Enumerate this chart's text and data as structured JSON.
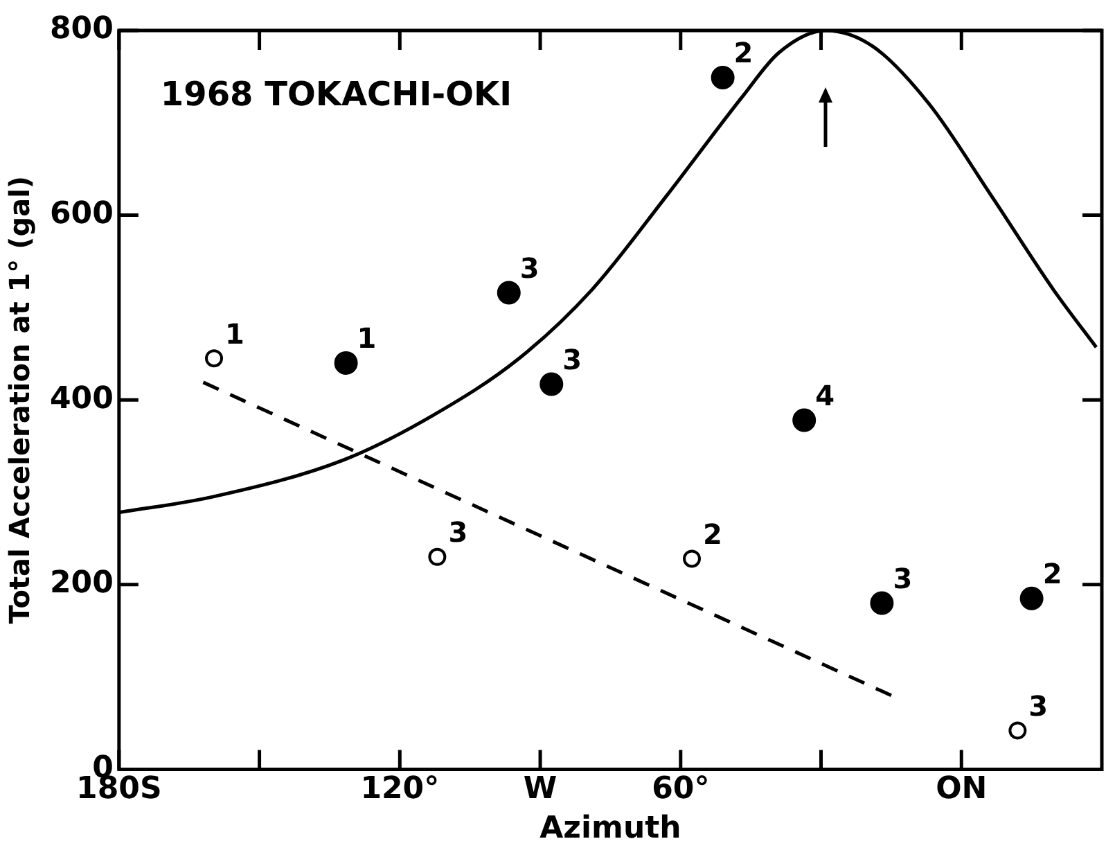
{
  "chart_data": {
    "type": "scatter",
    "title": "1968 TOKACHI-OKI",
    "xlabel": "Azimuth",
    "ylabel": "Total Acceleration at 1° (gal)",
    "xlim": [
      180,
      -30
    ],
    "xticks": [
      {
        "value": 180,
        "label": "180S"
      },
      {
        "value": 150,
        "label": null
      },
      {
        "value": 120,
        "label": "120°"
      },
      {
        "value": 90,
        "label": "W"
      },
      {
        "value": 60,
        "label": "60°"
      },
      {
        "value": 30,
        "label": null
      },
      {
        "value": 0,
        "label": "ON"
      }
    ],
    "ylim": [
      0,
      800
    ],
    "yticks": [
      0,
      200,
      400,
      600,
      800
    ],
    "grid": false,
    "legend": false,
    "series": [
      {
        "type": "line",
        "color": "#000000",
        "marker": "none",
        "line_style": "solid",
        "x": [
          180,
          160,
          132,
          113,
          94.5,
          79,
          63,
          46.7,
          39,
          29,
          19,
          7,
          -6.4,
          -19.7,
          -28.8
        ],
        "values": [
          278,
          295,
          335,
          383,
          445,
          519,
          621,
          729,
          776,
          800,
          783,
          721,
          621,
          519,
          457
        ]
      },
      {
        "type": "line",
        "color": "#000000",
        "marker": "none",
        "line_style": "dashed",
        "x": [
          162,
          15
        ],
        "values": [
          419,
          80
        ]
      },
      {
        "color": "#000000",
        "marker": "circle",
        "x": [
          131.5,
          96.7,
          87.6,
          51,
          33.6,
          17,
          -15
        ],
        "values": [
          440,
          516,
          417,
          749,
          378,
          180,
          185
        ]
      },
      {
        "color": "#000000",
        "marker": "circle",
        "x": [
          159.7,
          112,
          57.6,
          -12
        ],
        "values": [
          445,
          230,
          228,
          42
        ]
      }
    ],
    "annotations": [
      {
        "text": "1",
        "x": 131.5,
        "y": 440
      },
      {
        "text": "3",
        "x": 96.7,
        "y": 516
      },
      {
        "text": "3",
        "x": 87.6,
        "y": 417
      },
      {
        "text": "2",
        "x": 51,
        "y": 749
      },
      {
        "text": "4",
        "x": 33.6,
        "y": 378
      },
      {
        "text": "3",
        "x": 17,
        "y": 180
      },
      {
        "text": "2",
        "x": -15,
        "y": 185
      },
      {
        "text": "1",
        "x": 159.7,
        "y": 445
      },
      {
        "text": "3",
        "x": 112,
        "y": 230
      },
      {
        "text": "2",
        "x": 57.6,
        "y": 228
      },
      {
        "text": "3",
        "x": -12,
        "y": 42
      }
    ]
  }
}
